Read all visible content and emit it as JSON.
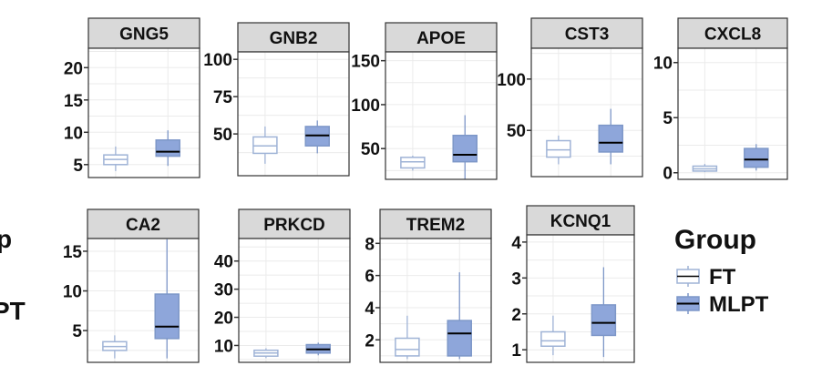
{
  "chart_data": {
    "type": "boxplot",
    "layout": "faceted-grid",
    "group_order": [
      "FT",
      "MLPT"
    ],
    "legend": {
      "title": "Group",
      "entries": [
        {
          "label": "FT",
          "fill": "#ffffff",
          "stroke": "#8ea6cf"
        },
        {
          "label": "MLPT",
          "fill": "#8ea6da",
          "stroke": "#7d97c8"
        }
      ],
      "position": "right"
    },
    "colors": {
      "ft_fill": "#ffffff",
      "ft_stroke": "#9fb3d6",
      "mlpt_fill": "#8ea6da",
      "mlpt_stroke": "#7d97c8",
      "median": "#000000",
      "strip_fill": "#d9d9d9",
      "grid": "#ebebeb",
      "axis": "#333333"
    },
    "edge_labels": [
      "p",
      "PT"
    ],
    "panels": [
      {
        "gene": "GNG5",
        "ylim": [
          3,
          23
        ],
        "yticks": [
          5,
          10,
          15,
          20
        ],
        "tick_labels": [
          "5",
          "10",
          "15",
          "20"
        ],
        "boxes": [
          {
            "group": "FT",
            "min": 4.0,
            "q1": 5.0,
            "median": 5.8,
            "q3": 6.5,
            "max": 7.8
          },
          {
            "group": "MLPT",
            "min": 4.8,
            "q1": 6.3,
            "median": 7.0,
            "q3": 8.8,
            "max": 10.3
          }
        ]
      },
      {
        "gene": "GNB2",
        "ylim": [
          22,
          105
        ],
        "yticks": [
          50,
          75,
          100
        ],
        "tick_labels": [
          "50",
          "75",
          "100"
        ],
        "boxes": [
          {
            "group": "FT",
            "min": 30,
            "q1": 37,
            "median": 42,
            "q3": 48,
            "max": 55
          },
          {
            "group": "MLPT",
            "min": 37,
            "q1": 42,
            "median": 49,
            "q3": 55,
            "max": 59
          }
        ]
      },
      {
        "gene": "APOE",
        "ylim": [
          15,
          160
        ],
        "yticks": [
          50,
          100,
          150
        ],
        "tick_labels": [
          "50",
          "100",
          "150"
        ],
        "boxes": [
          {
            "group": "FT",
            "min": 25,
            "q1": 28,
            "median": 35,
            "q3": 40,
            "max": 42
          },
          {
            "group": "MLPT",
            "min": 15,
            "q1": 35,
            "median": 43,
            "q3": 65,
            "max": 88
          }
        ]
      },
      {
        "gene": "CST3",
        "ylim": [
          5,
          130
        ],
        "yticks": [
          50,
          100
        ],
        "tick_labels": [
          "50",
          "100"
        ],
        "boxes": [
          {
            "group": "FT",
            "min": 17,
            "q1": 24,
            "median": 31,
            "q3": 40,
            "max": 45
          },
          {
            "group": "MLPT",
            "min": 17,
            "q1": 29,
            "median": 38,
            "q3": 55,
            "max": 71
          }
        ]
      },
      {
        "gene": "CXCL8",
        "ylim": [
          -0.6,
          11.3
        ],
        "yticks": [
          0,
          5,
          10
        ],
        "tick_labels": [
          "0",
          "5",
          "10"
        ],
        "boxes": [
          {
            "group": "FT",
            "min": 0.05,
            "q1": 0.15,
            "median": 0.35,
            "q3": 0.6,
            "max": 0.8
          },
          {
            "group": "MLPT",
            "min": 0.2,
            "q1": 0.5,
            "median": 1.2,
            "q3": 2.2,
            "max": 2.6
          }
        ]
      },
      {
        "gene": "CA2",
        "ylim": [
          1.0,
          16.6
        ],
        "yticks": [
          5,
          10,
          15
        ],
        "tick_labels": [
          "5",
          "10",
          "15"
        ],
        "boxes": [
          {
            "group": "FT",
            "min": 1.5,
            "q1": 2.5,
            "median": 3.0,
            "q3": 3.6,
            "max": 4.4
          },
          {
            "group": "MLPT",
            "min": 1.5,
            "q1": 4.0,
            "median": 5.5,
            "q3": 9.6,
            "max": 16.5
          }
        ]
      },
      {
        "gene": "PRKCD",
        "ylim": [
          4,
          48
        ],
        "yticks": [
          10,
          20,
          30,
          40
        ],
        "tick_labels": [
          "10",
          "20",
          "30",
          "40"
        ],
        "boxes": [
          {
            "group": "FT",
            "min": 5.5,
            "q1": 6.2,
            "median": 7.3,
            "q3": 8.3,
            "max": 9.0
          },
          {
            "group": "MLPT",
            "min": 6.5,
            "q1": 7.3,
            "median": 8.6,
            "q3": 10.3,
            "max": 11.0
          }
        ]
      },
      {
        "gene": "TREM2",
        "ylim": [
          0.6,
          8.3
        ],
        "yticks": [
          2,
          4,
          6,
          8
        ],
        "tick_labels": [
          "2",
          "4",
          "6",
          "8"
        ],
        "boxes": [
          {
            "group": "FT",
            "min": 0.8,
            "q1": 1.0,
            "median": 1.4,
            "q3": 2.1,
            "max": 3.5
          },
          {
            "group": "MLPT",
            "min": 0.8,
            "q1": 1.0,
            "median": 2.4,
            "q3": 3.2,
            "max": 6.2
          }
        ]
      },
      {
        "gene": "KCNQ1",
        "ylim": [
          0.65,
          4.2
        ],
        "yticks": [
          1,
          2,
          3,
          4
        ],
        "tick_labels": [
          "1",
          "2",
          "3",
          "4"
        ],
        "boxes": [
          {
            "group": "FT",
            "min": 0.85,
            "q1": 1.1,
            "median": 1.25,
            "q3": 1.5,
            "max": 1.95
          },
          {
            "group": "MLPT",
            "min": 0.8,
            "q1": 1.4,
            "median": 1.75,
            "q3": 2.25,
            "max": 3.3
          }
        ]
      }
    ]
  }
}
